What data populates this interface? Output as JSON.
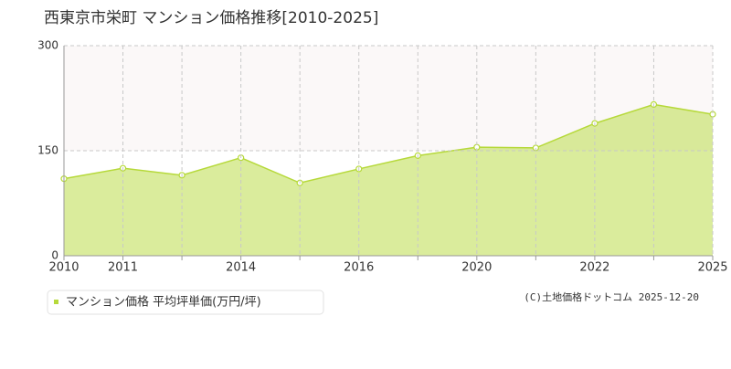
{
  "chart_data": {
    "type": "area",
    "title": "西東京市栄町 マンション価格推移[2010-2025]",
    "categories": [
      "2010",
      "2011",
      null,
      "2014",
      null,
      "2016",
      null,
      "2020",
      null,
      "2022",
      null,
      "2025"
    ],
    "series": [
      {
        "name": "マンション価格 平均坪単価(万円/坪)",
        "color": "#b6d93a",
        "values": [
          110,
          125,
          115,
          140,
          104,
          124,
          143,
          155,
          154,
          189,
          216,
          202
        ]
      }
    ],
    "ylim": [
      0,
      300
    ],
    "yticks": [
      0,
      150,
      300
    ],
    "grid": true,
    "source": "(C)土地価格ドットコム 2025-12-20"
  }
}
